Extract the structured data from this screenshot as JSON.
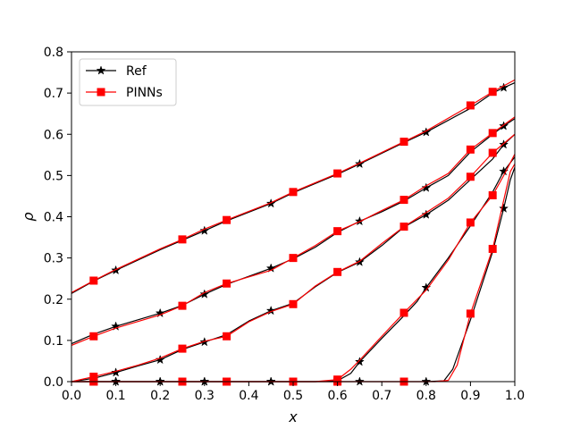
{
  "chart_data": {
    "type": "line",
    "title": "",
    "xlabel": "x",
    "ylabel": "ρ",
    "xlim": [
      0.0,
      1.0
    ],
    "ylim": [
      0.0,
      0.8
    ],
    "x_ticks": [
      0.0,
      0.1,
      0.2,
      0.3,
      0.4,
      0.5,
      0.6,
      0.7,
      0.8,
      0.9,
      1.0
    ],
    "x_tick_labels": [
      "0.0",
      "0.1",
      "0.2",
      "0.3",
      "0.4",
      "0.5",
      "0.6",
      "0.7",
      "0.8",
      "0.9",
      "1.0"
    ],
    "y_ticks": [
      0.0,
      0.1,
      0.2,
      0.3,
      0.4,
      0.5,
      0.6,
      0.7,
      0.8
    ],
    "y_tick_labels": [
      "0.0",
      "0.1",
      "0.2",
      "0.3",
      "0.4",
      "0.5",
      "0.6",
      "0.7",
      "0.8"
    ],
    "grid": false,
    "legend": {
      "placement": "top-left",
      "entries": [
        "Ref",
        "PINNs"
      ]
    },
    "series": [
      {
        "name": "Ref",
        "color": "#000000",
        "marker": "star",
        "curves": [
          {
            "points": [
              [
                0,
                0.214
              ],
              [
                0.05,
                0.244
              ],
              [
                0.1,
                0.27
              ],
              [
                0.2,
                0.32
              ],
              [
                0.3,
                0.366
              ],
              [
                0.35,
                0.39
              ],
              [
                0.45,
                0.432
              ],
              [
                0.5,
                0.458
              ],
              [
                0.6,
                0.503
              ],
              [
                0.65,
                0.528
              ],
              [
                0.75,
                0.58
              ],
              [
                0.8,
                0.605
              ],
              [
                0.9,
                0.663
              ],
              [
                0.95,
                0.7
              ],
              [
                0.975,
                0.713
              ],
              [
                1.0,
                0.725
              ]
            ],
            "markers": [
              [
                0.1,
                0.27
              ],
              [
                0.3,
                0.366
              ],
              [
                0.45,
                0.432
              ],
              [
                0.65,
                0.528
              ],
              [
                0.8,
                0.605
              ],
              [
                0.975,
                0.713
              ]
            ]
          },
          {
            "points": [
              [
                0,
                0.092
              ],
              [
                0.05,
                0.115
              ],
              [
                0.1,
                0.134
              ],
              [
                0.2,
                0.166
              ],
              [
                0.25,
                0.185
              ],
              [
                0.3,
                0.212
              ],
              [
                0.35,
                0.236
              ],
              [
                0.45,
                0.275
              ],
              [
                0.5,
                0.298
              ],
              [
                0.55,
                0.326
              ],
              [
                0.6,
                0.362
              ],
              [
                0.65,
                0.389
              ],
              [
                0.7,
                0.412
              ],
              [
                0.75,
                0.438
              ],
              [
                0.8,
                0.47
              ],
              [
                0.85,
                0.5
              ],
              [
                0.9,
                0.557
              ],
              [
                0.95,
                0.6
              ],
              [
                0.975,
                0.62
              ],
              [
                1.0,
                0.638
              ]
            ],
            "markers": [
              [
                0.1,
                0.134
              ],
              [
                0.2,
                0.166
              ],
              [
                0.3,
                0.212
              ],
              [
                0.45,
                0.275
              ],
              [
                0.65,
                0.389
              ],
              [
                0.8,
                0.47
              ],
              [
                0.975,
                0.62
              ]
            ]
          },
          {
            "points": [
              [
                0,
                0.0
              ],
              [
                0.05,
                0.008
              ],
              [
                0.1,
                0.022
              ],
              [
                0.15,
                0.038
              ],
              [
                0.2,
                0.053
              ],
              [
                0.25,
                0.078
              ],
              [
                0.3,
                0.096
              ],
              [
                0.35,
                0.114
              ],
              [
                0.4,
                0.147
              ],
              [
                0.45,
                0.172
              ],
              [
                0.5,
                0.19
              ],
              [
                0.55,
                0.23
              ],
              [
                0.6,
                0.265
              ],
              [
                0.65,
                0.29
              ],
              [
                0.7,
                0.33
              ],
              [
                0.75,
                0.375
              ],
              [
                0.8,
                0.405
              ],
              [
                0.85,
                0.44
              ],
              [
                0.9,
                0.49
              ],
              [
                0.95,
                0.54
              ],
              [
                0.975,
                0.575
              ],
              [
                1.0,
                0.6
              ]
            ],
            "markers": [
              [
                0.1,
                0.022
              ],
              [
                0.2,
                0.053
              ],
              [
                0.3,
                0.096
              ],
              [
                0.45,
                0.172
              ],
              [
                0.65,
                0.29
              ],
              [
                0.8,
                0.405
              ],
              [
                0.975,
                0.575
              ]
            ]
          },
          {
            "points": [
              [
                0,
                0
              ],
              [
                0.3,
                0
              ],
              [
                0.55,
                0
              ],
              [
                0.6,
                0.002
              ],
              [
                0.63,
                0.02
              ],
              [
                0.65,
                0.048
              ],
              [
                0.7,
                0.105
              ],
              [
                0.75,
                0.16
              ],
              [
                0.78,
                0.195
              ],
              [
                0.8,
                0.228
              ],
              [
                0.85,
                0.3
              ],
              [
                0.9,
                0.378
              ],
              [
                0.95,
                0.46
              ],
              [
                0.975,
                0.51
              ],
              [
                1.0,
                0.545
              ]
            ],
            "markers": [
              [
                0.1,
                0
              ],
              [
                0.2,
                0
              ],
              [
                0.3,
                0
              ],
              [
                0.45,
                0
              ],
              [
                0.65,
                0.048
              ],
              [
                0.8,
                0.228
              ],
              [
                0.975,
                0.51
              ]
            ]
          },
          {
            "points": [
              [
                0,
                0
              ],
              [
                0.8,
                0
              ],
              [
                0.84,
                0.002
              ],
              [
                0.86,
                0.03
              ],
              [
                0.9,
                0.15
              ],
              [
                0.95,
                0.315
              ],
              [
                0.975,
                0.42
              ],
              [
                0.99,
                0.49
              ],
              [
                1.0,
                0.52
              ]
            ],
            "markers": [
              [
                0.1,
                0
              ],
              [
                0.2,
                0
              ],
              [
                0.3,
                0
              ],
              [
                0.45,
                0
              ],
              [
                0.65,
                0
              ],
              [
                0.8,
                0
              ],
              [
                0.975,
                0.42
              ]
            ]
          }
        ]
      },
      {
        "name": "PINNs",
        "color": "#ff0000",
        "marker": "square",
        "curves": [
          {
            "points": [
              [
                0,
                0.216
              ],
              [
                0.05,
                0.245
              ],
              [
                0.1,
                0.272
              ],
              [
                0.2,
                0.322
              ],
              [
                0.25,
                0.345
              ],
              [
                0.3,
                0.37
              ],
              [
                0.35,
                0.392
              ],
              [
                0.45,
                0.434
              ],
              [
                0.5,
                0.46
              ],
              [
                0.6,
                0.505
              ],
              [
                0.65,
                0.53
              ],
              [
                0.75,
                0.582
              ],
              [
                0.8,
                0.608
              ],
              [
                0.9,
                0.67
              ],
              [
                0.95,
                0.703
              ],
              [
                1.0,
                0.732
              ]
            ],
            "markers": [
              [
                0.05,
                0.245
              ],
              [
                0.25,
                0.345
              ],
              [
                0.35,
                0.392
              ],
              [
                0.5,
                0.46
              ],
              [
                0.6,
                0.505
              ],
              [
                0.75,
                0.582
              ],
              [
                0.9,
                0.67
              ],
              [
                0.95,
                0.703
              ]
            ]
          },
          {
            "points": [
              [
                0,
                0.088
              ],
              [
                0.05,
                0.11
              ],
              [
                0.1,
                0.13
              ],
              [
                0.2,
                0.162
              ],
              [
                0.25,
                0.184
              ],
              [
                0.3,
                0.216
              ],
              [
                0.35,
                0.238
              ],
              [
                0.45,
                0.27
              ],
              [
                0.5,
                0.3
              ],
              [
                0.55,
                0.33
              ],
              [
                0.6,
                0.365
              ],
              [
                0.65,
                0.388
              ],
              [
                0.7,
                0.415
              ],
              [
                0.75,
                0.441
              ],
              [
                0.8,
                0.475
              ],
              [
                0.85,
                0.505
              ],
              [
                0.9,
                0.563
              ],
              [
                0.95,
                0.603
              ],
              [
                1.0,
                0.642
              ]
            ],
            "markers": [
              [
                0.05,
                0.11
              ],
              [
                0.25,
                0.184
              ],
              [
                0.35,
                0.238
              ],
              [
                0.5,
                0.3
              ],
              [
                0.6,
                0.365
              ],
              [
                0.75,
                0.441
              ],
              [
                0.9,
                0.563
              ],
              [
                0.95,
                0.603
              ]
            ]
          },
          {
            "points": [
              [
                0,
                0.0
              ],
              [
                0.05,
                0.012
              ],
              [
                0.1,
                0.025
              ],
              [
                0.15,
                0.04
              ],
              [
                0.2,
                0.057
              ],
              [
                0.25,
                0.08
              ],
              [
                0.3,
                0.098
              ],
              [
                0.35,
                0.11
              ],
              [
                0.4,
                0.145
              ],
              [
                0.45,
                0.17
              ],
              [
                0.5,
                0.188
              ],
              [
                0.55,
                0.232
              ],
              [
                0.6,
                0.266
              ],
              [
                0.65,
                0.292
              ],
              [
                0.7,
                0.335
              ],
              [
                0.75,
                0.376
              ],
              [
                0.8,
                0.41
              ],
              [
                0.85,
                0.445
              ],
              [
                0.9,
                0.497
              ],
              [
                0.95,
                0.555
              ],
              [
                1.0,
                0.6
              ]
            ],
            "markers": [
              [
                0.05,
                0.012
              ],
              [
                0.25,
                0.08
              ],
              [
                0.35,
                0.11
              ],
              [
                0.5,
                0.188
              ],
              [
                0.6,
                0.266
              ],
              [
                0.75,
                0.376
              ],
              [
                0.9,
                0.497
              ],
              [
                0.95,
                0.555
              ]
            ]
          },
          {
            "points": [
              [
                0,
                0
              ],
              [
                0.55,
                0
              ],
              [
                0.6,
                0.005
              ],
              [
                0.63,
                0.03
              ],
              [
                0.65,
                0.052
              ],
              [
                0.7,
                0.11
              ],
              [
                0.75,
                0.167
              ],
              [
                0.78,
                0.2
              ],
              [
                0.8,
                0.222
              ],
              [
                0.85,
                0.295
              ],
              [
                0.9,
                0.386
              ],
              [
                0.95,
                0.452
              ],
              [
                0.975,
                0.5
              ],
              [
                1.0,
                0.552
              ]
            ],
            "markers": [
              [
                0.05,
                0
              ],
              [
                0.25,
                0
              ],
              [
                0.35,
                0
              ],
              [
                0.5,
                0
              ],
              [
                0.6,
                0.005
              ],
              [
                0.75,
                0.167
              ],
              [
                0.9,
                0.386
              ],
              [
                0.95,
                0.452
              ]
            ]
          },
          {
            "points": [
              [
                0,
                0
              ],
              [
                0.82,
                0
              ],
              [
                0.85,
                0.003
              ],
              [
                0.87,
                0.04
              ],
              [
                0.9,
                0.165
              ],
              [
                0.95,
                0.322
              ],
              [
                0.975,
                0.44
              ],
              [
                0.99,
                0.51
              ],
              [
                1.0,
                0.528
              ]
            ],
            "markers": [
              [
                0.05,
                0
              ],
              [
                0.25,
                0
              ],
              [
                0.35,
                0
              ],
              [
                0.5,
                0
              ],
              [
                0.6,
                0
              ],
              [
                0.75,
                0
              ],
              [
                0.9,
                0.165
              ],
              [
                0.95,
                0.322
              ]
            ]
          }
        ]
      }
    ]
  }
}
